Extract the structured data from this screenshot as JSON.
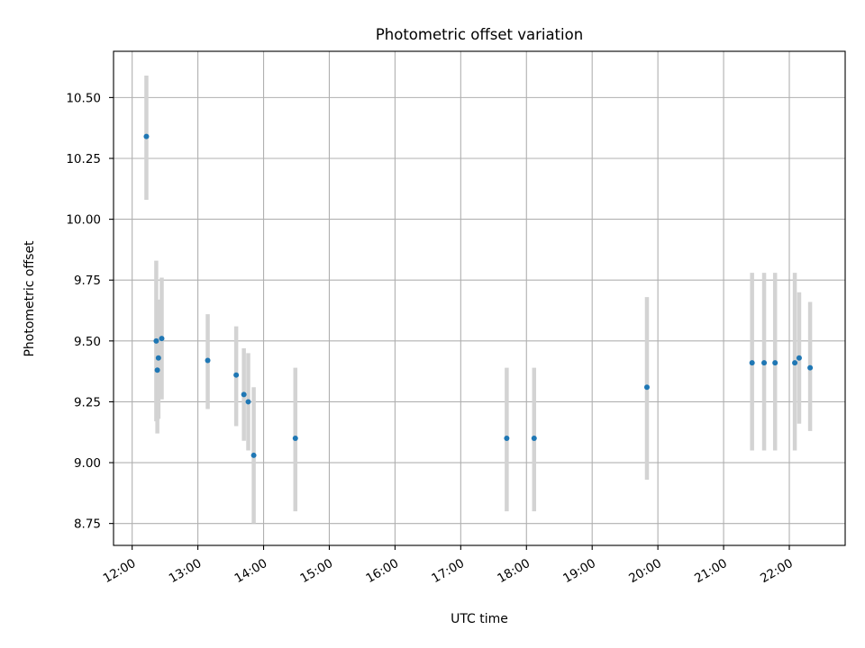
{
  "chart_data": {
    "type": "scatter",
    "title": "Photometric offset variation",
    "xlabel": "UTC time",
    "ylabel": "Photometric offset",
    "x_tick_labels": [
      "12:00",
      "13:00",
      "14:00",
      "15:00",
      "16:00",
      "17:00",
      "18:00",
      "19:00",
      "20:00",
      "21:00",
      "22:00"
    ],
    "y_tick_labels": [
      "8.75",
      "9.00",
      "9.25",
      "9.50",
      "9.75",
      "10.00",
      "10.25",
      "10.50"
    ],
    "y_ticks": [
      8.75,
      9.0,
      9.25,
      9.5,
      9.75,
      10.0,
      10.25,
      10.5
    ],
    "xlim": [
      "11:43",
      "22:51"
    ],
    "ylim": [
      8.66,
      10.69
    ],
    "grid": true,
    "marker_color": "#1f77b4",
    "errorbar_color": "#d3d3d3",
    "points": [
      {
        "x": "12:13",
        "y": 10.34,
        "ylow": 10.08,
        "yhigh": 10.59
      },
      {
        "x": "12:22",
        "y": 9.5,
        "ylow": 9.17,
        "yhigh": 9.83
      },
      {
        "x": "12:23",
        "y": 9.38,
        "ylow": 9.12,
        "yhigh": 9.64
      },
      {
        "x": "12:24",
        "y": 9.43,
        "ylow": 9.18,
        "yhigh": 9.67
      },
      {
        "x": "12:27",
        "y": 9.51,
        "ylow": 9.26,
        "yhigh": 9.76
      },
      {
        "x": "13:09",
        "y": 9.42,
        "ylow": 9.22,
        "yhigh": 9.61
      },
      {
        "x": "13:35",
        "y": 9.36,
        "ylow": 9.15,
        "yhigh": 9.56
      },
      {
        "x": "13:42",
        "y": 9.28,
        "ylow": 9.09,
        "yhigh": 9.47
      },
      {
        "x": "13:46",
        "y": 9.25,
        "ylow": 9.05,
        "yhigh": 9.45
      },
      {
        "x": "13:51",
        "y": 9.03,
        "ylow": 8.75,
        "yhigh": 9.31
      },
      {
        "x": "14:29",
        "y": 9.1,
        "ylow": 8.8,
        "yhigh": 9.39
      },
      {
        "x": "17:42",
        "y": 9.1,
        "ylow": 8.8,
        "yhigh": 9.39
      },
      {
        "x": "18:07",
        "y": 9.1,
        "ylow": 8.8,
        "yhigh": 9.39
      },
      {
        "x": "19:50",
        "y": 9.31,
        "ylow": 8.93,
        "yhigh": 9.68
      },
      {
        "x": "21:26",
        "y": 9.41,
        "ylow": 9.05,
        "yhigh": 9.78
      },
      {
        "x": "21:37",
        "y": 9.41,
        "ylow": 9.05,
        "yhigh": 9.78
      },
      {
        "x": "21:47",
        "y": 9.41,
        "ylow": 9.05,
        "yhigh": 9.78
      },
      {
        "x": "22:05",
        "y": 9.41,
        "ylow": 9.05,
        "yhigh": 9.78
      },
      {
        "x": "22:09",
        "y": 9.43,
        "ylow": 9.16,
        "yhigh": 9.7
      },
      {
        "x": "22:19",
        "y": 9.39,
        "ylow": 9.13,
        "yhigh": 9.66
      }
    ]
  }
}
